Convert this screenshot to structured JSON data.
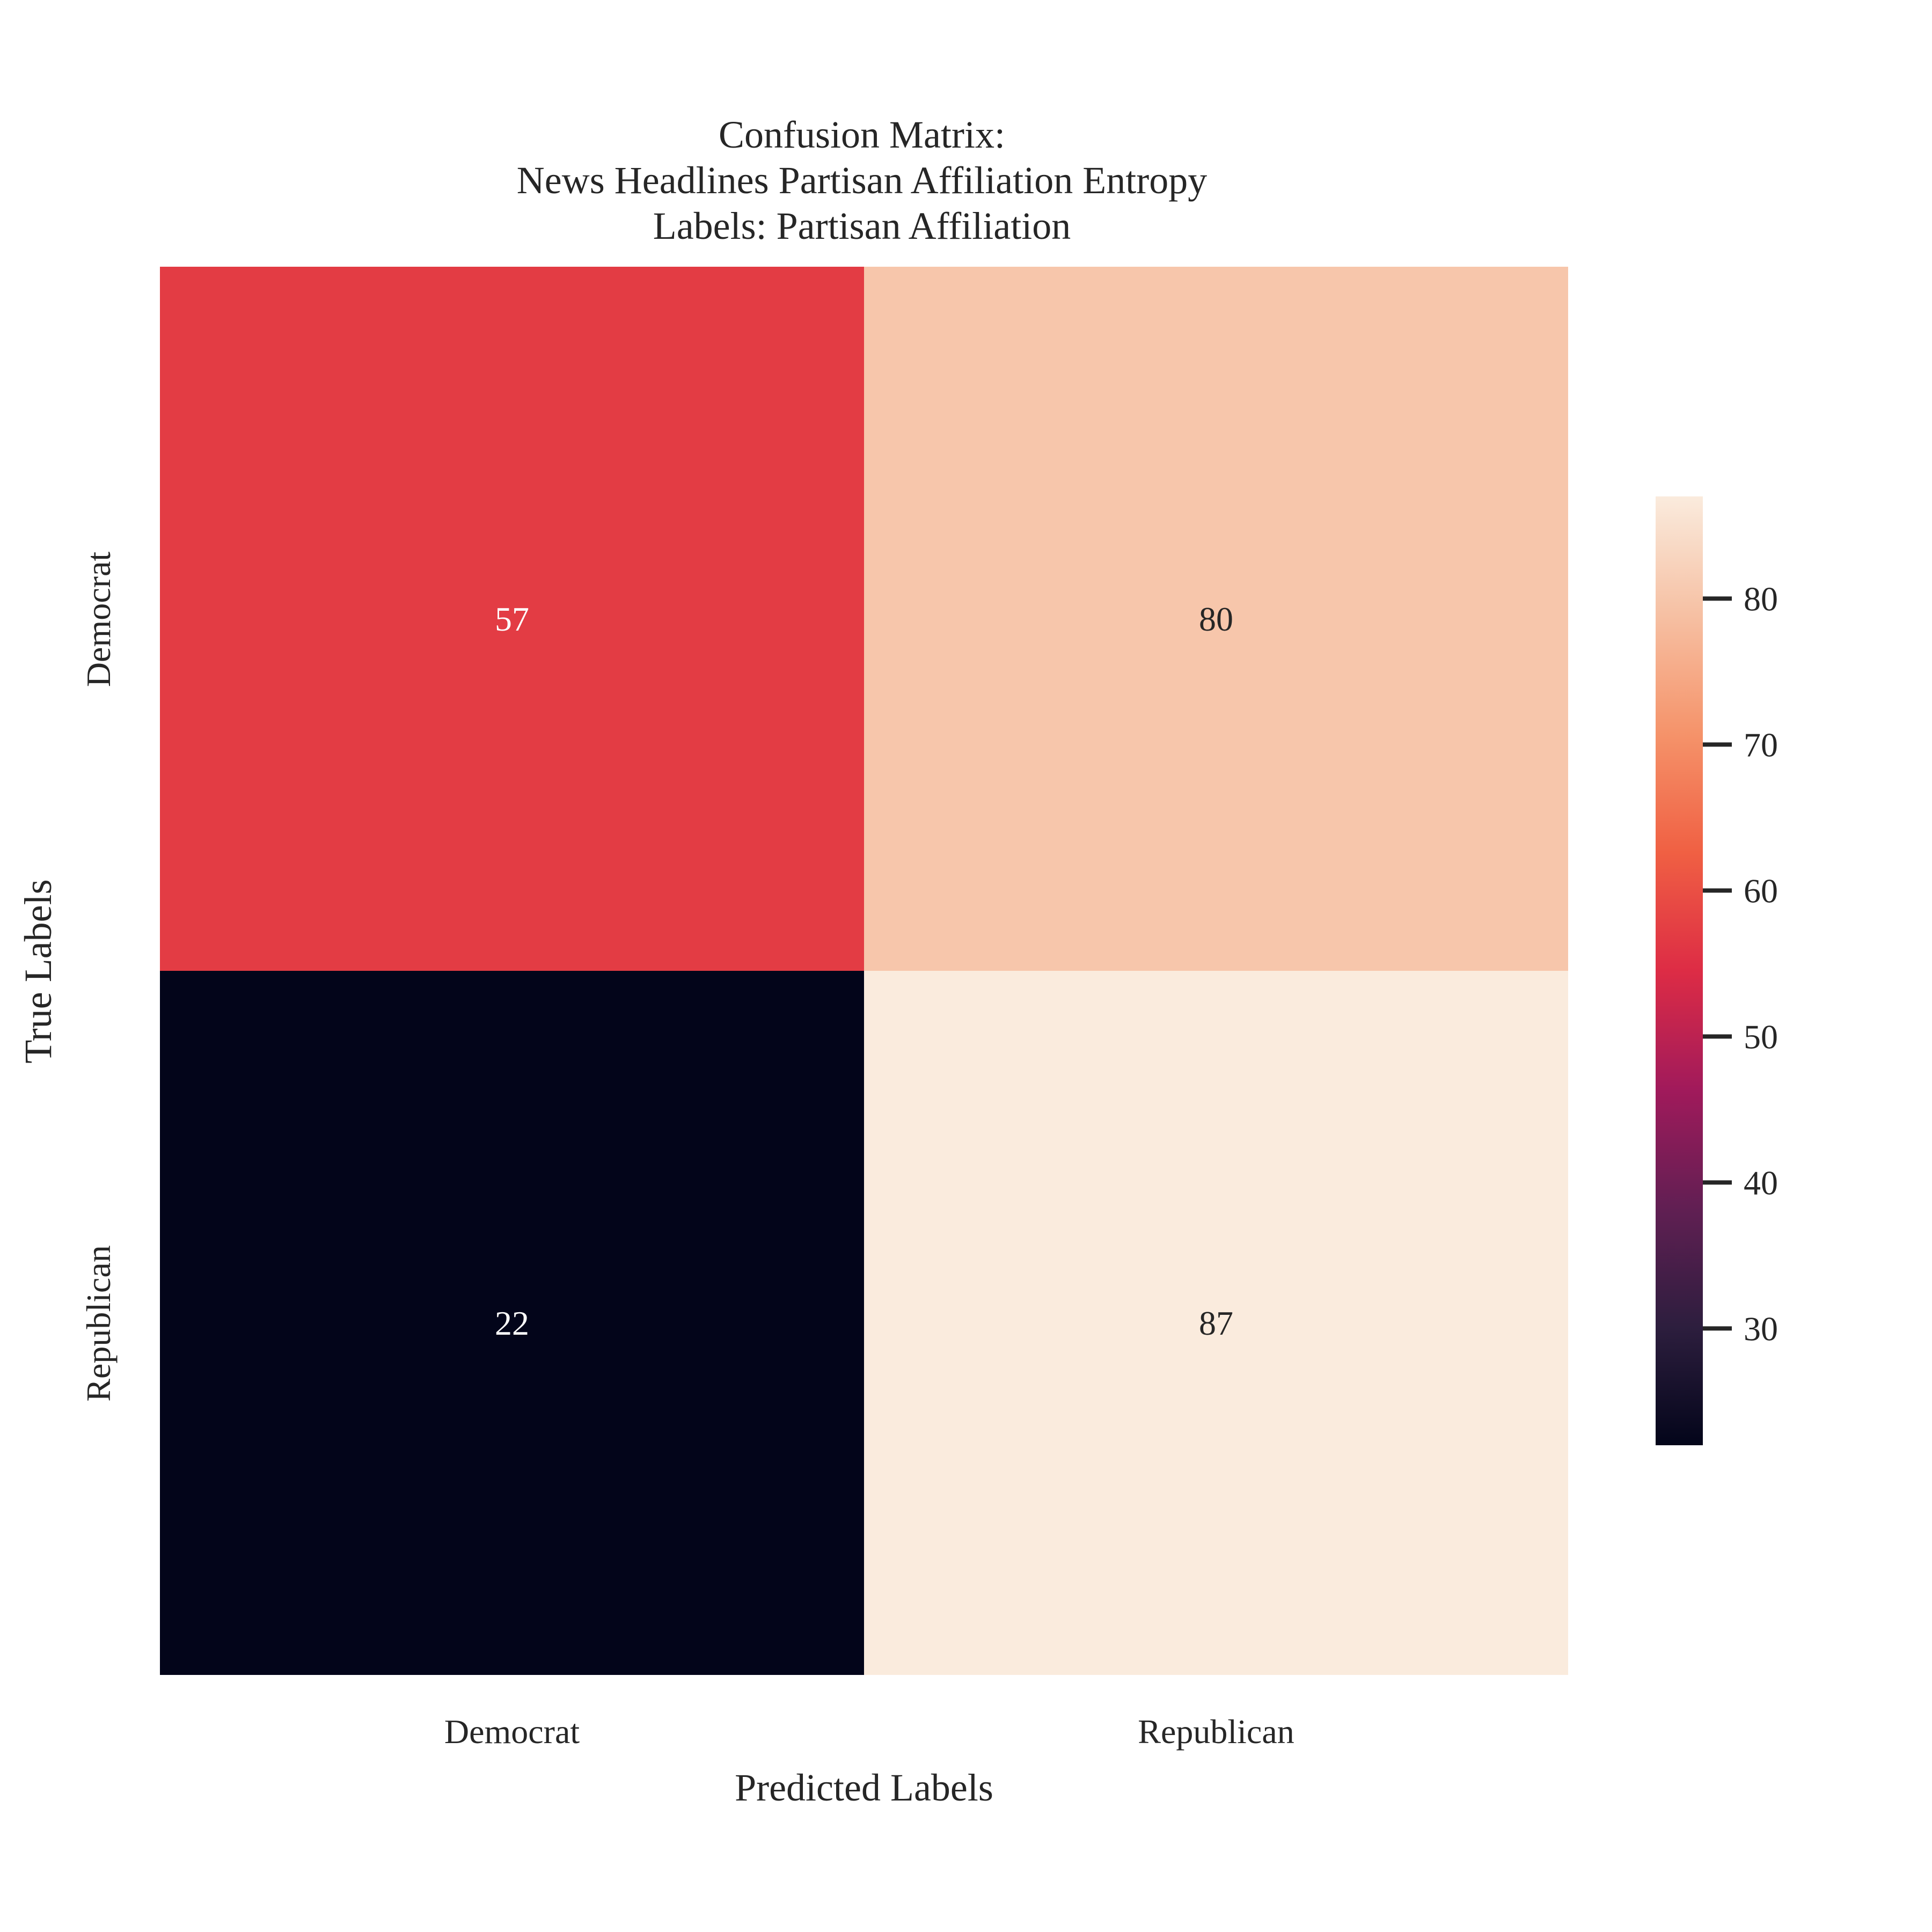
{
  "chart_data": {
    "type": "heatmap",
    "title": [
      "Confusion Matrix:",
      "News Headlines Partisan Affiliation Entropy",
      "Labels: Partisan Affiliation"
    ],
    "xlabel": "Predicted Labels",
    "ylabel": "True Labels",
    "x_categories": [
      "Democrat",
      "Republican"
    ],
    "y_categories": [
      "Democrat",
      "Republican"
    ],
    "values": [
      [
        57,
        80
      ],
      [
        22,
        87
      ]
    ],
    "colorbar": {
      "min": 22,
      "max": 87,
      "ticks": [
        30,
        40,
        50,
        60,
        70,
        80
      ],
      "colormap": "rocket",
      "stops": [
        "#03051a",
        "#2d1e3e",
        "#611f53",
        "#a11a5b",
        "#dd2c45",
        "#f06043",
        "#f5936a",
        "#f6c0a3",
        "#faebdd"
      ]
    },
    "grid": false
  }
}
